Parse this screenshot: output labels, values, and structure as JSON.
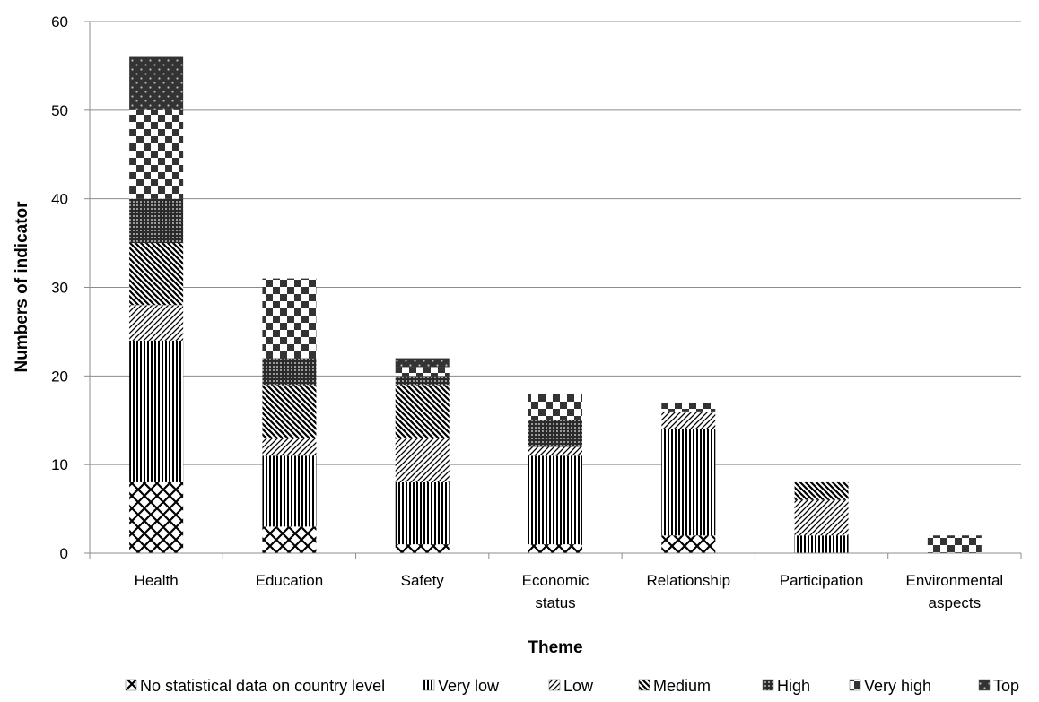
{
  "chart_data": {
    "type": "bar",
    "stacked": true,
    "categories": [
      "Health",
      "Education",
      "Safety",
      "Economic status",
      "Relationship",
      "Participation",
      "Environmental aspects"
    ],
    "category_lines": [
      [
        "Health"
      ],
      [
        "Education"
      ],
      [
        "Safety"
      ],
      [
        "Economic",
        "status"
      ],
      [
        "Relationship"
      ],
      [
        "Participation"
      ],
      [
        "Environmental",
        "aspects"
      ]
    ],
    "series": [
      {
        "name": "No  statistical data on country level",
        "values": [
          8,
          3,
          1,
          1,
          2,
          0,
          0
        ],
        "pattern": "lattice"
      },
      {
        "name": "Very low",
        "values": [
          16,
          8,
          7,
          10,
          12,
          2,
          0
        ],
        "pattern": "vlines"
      },
      {
        "name": "Low",
        "values": [
          4,
          2,
          5,
          1,
          2,
          4,
          0
        ],
        "pattern": "diag-up"
      },
      {
        "name": "Medium",
        "values": [
          7,
          6,
          6,
          0,
          0,
          2,
          0
        ],
        "pattern": "diag-down"
      },
      {
        "name": "High",
        "values": [
          5,
          3,
          1,
          3,
          0,
          0,
          0
        ],
        "pattern": "dense-grid"
      },
      {
        "name": "Very high",
        "values": [
          10,
          9,
          1,
          3,
          1,
          0,
          2
        ],
        "pattern": "checker"
      },
      {
        "name": "Top",
        "values": [
          6,
          0,
          1,
          0,
          0,
          0,
          0
        ],
        "pattern": "dark-dots"
      }
    ],
    "xlabel": "Theme",
    "ylabel": "Numbers of indicator",
    "ylim": [
      0,
      60
    ],
    "yticks": [
      0,
      10,
      20,
      30,
      40,
      50,
      60
    ],
    "grid": true,
    "legend_position": "bottom"
  }
}
